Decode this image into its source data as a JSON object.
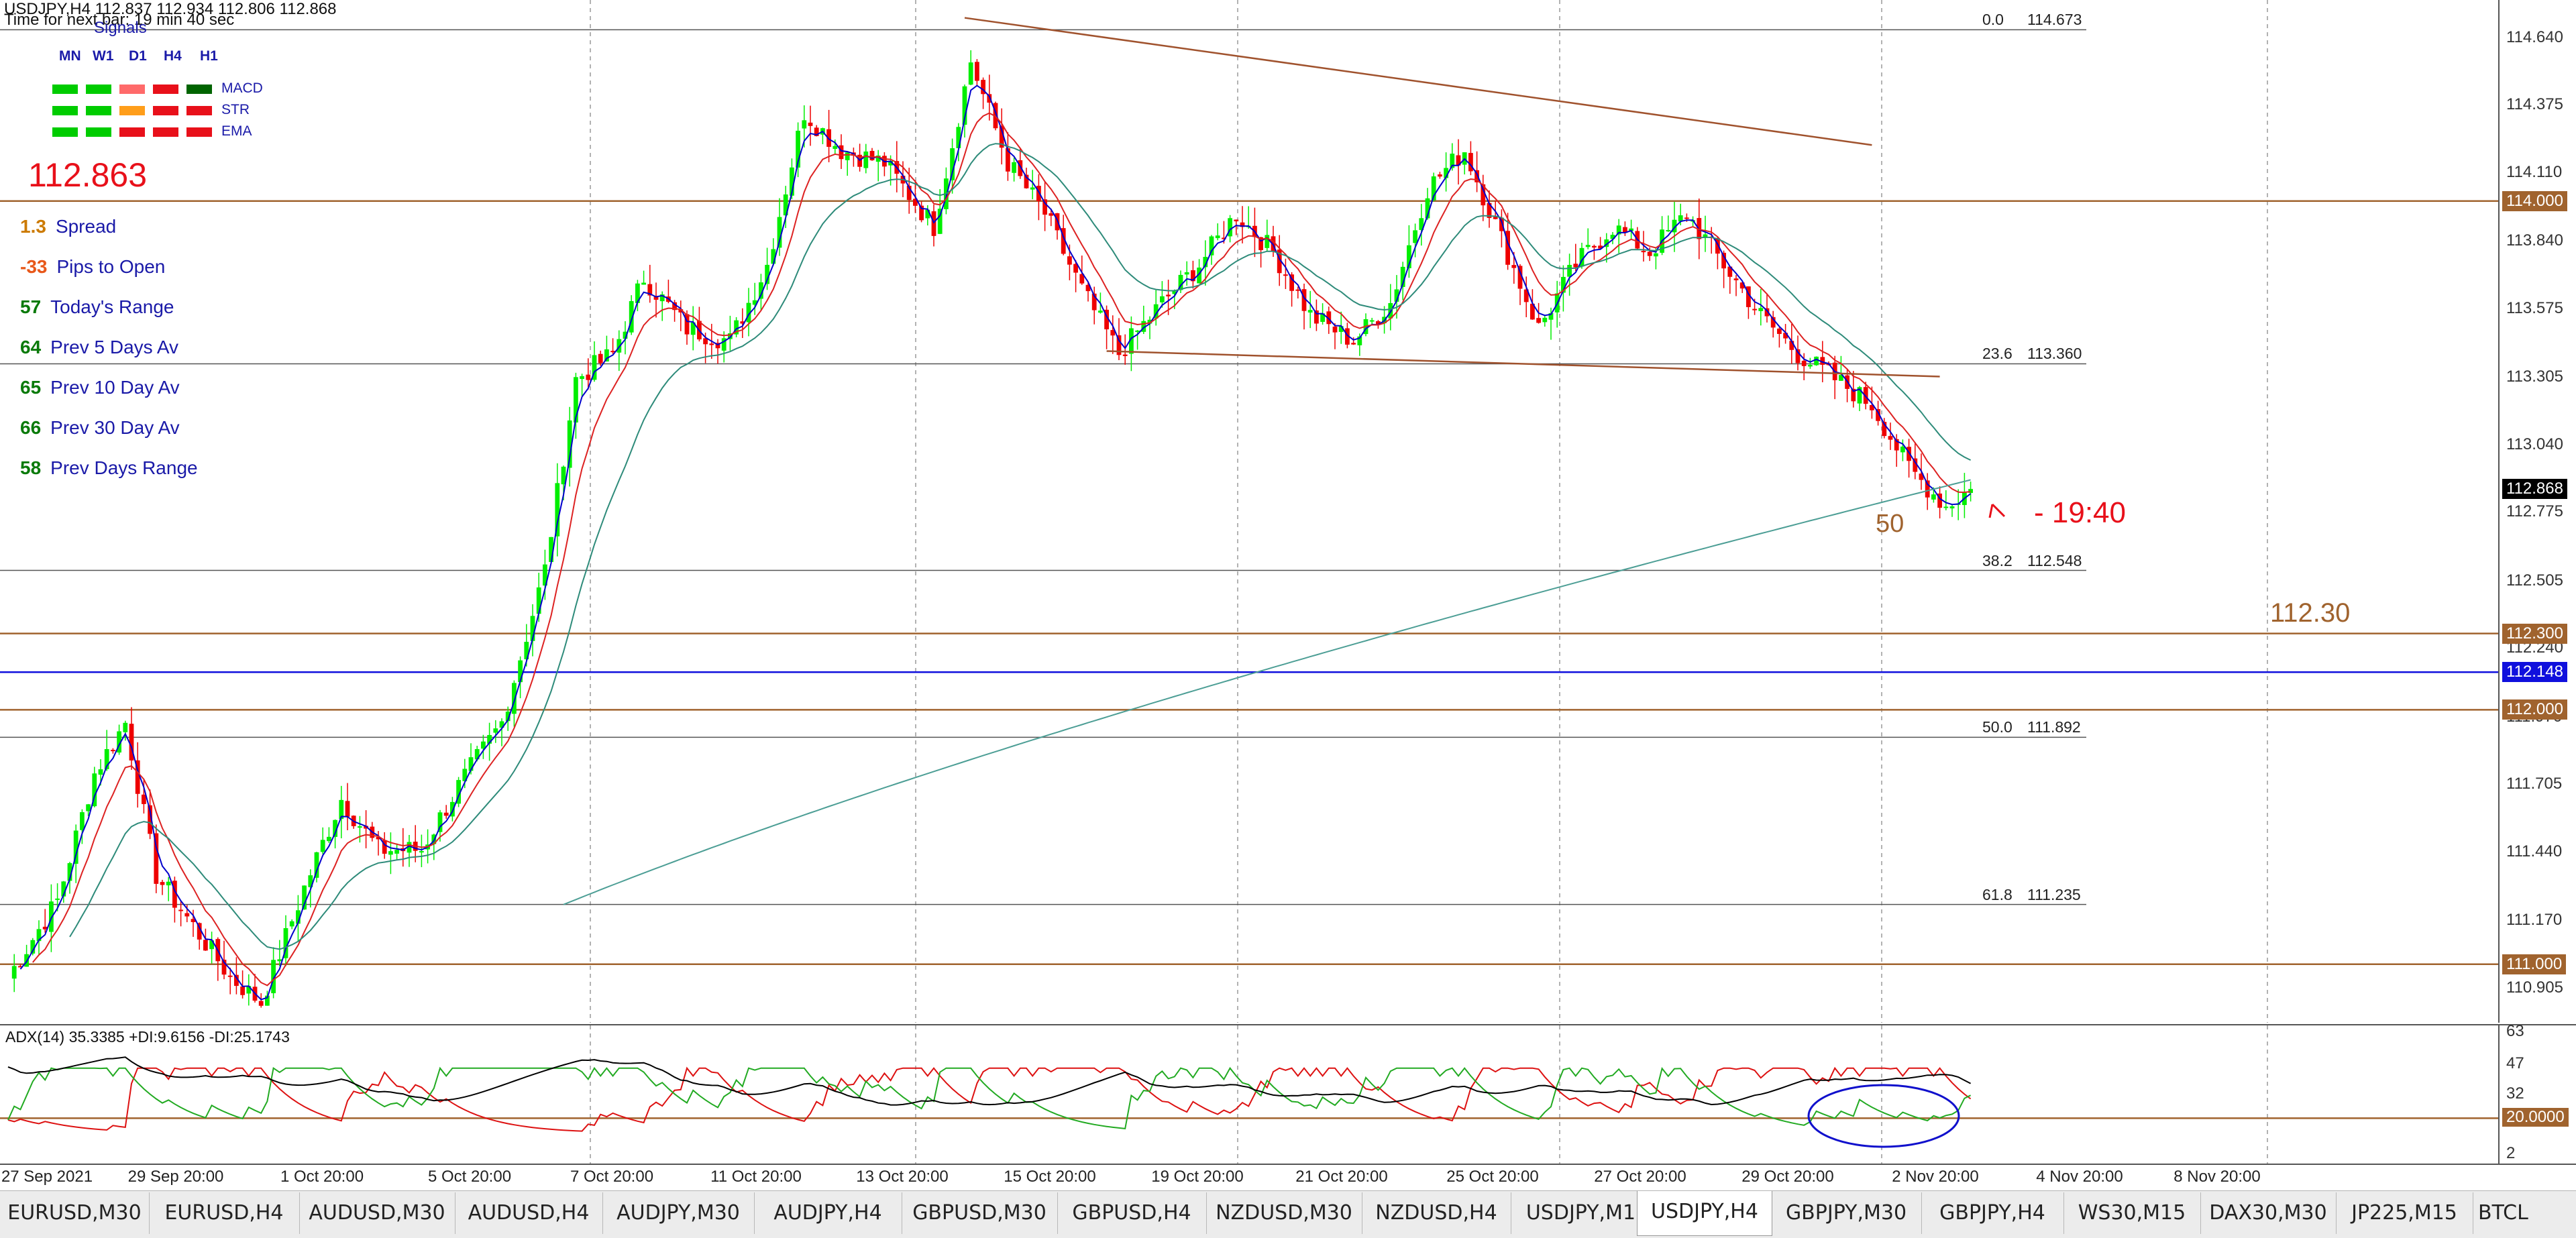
{
  "header": {
    "symbol_line": "USDJPY,H4  112.837 112.934 112.806 112.868",
    "timer": "Time for next bar: 19 min 40 sec",
    "signals_title": "Signals"
  },
  "signals": {
    "timeframes": [
      "MN",
      "W1",
      "D1",
      "H4",
      "H1"
    ],
    "rows": [
      {
        "name": "MACD",
        "colors": [
          "#00cc00",
          "#00cc00",
          "#ff6a6a",
          "#e8101a",
          "#006400"
        ]
      },
      {
        "name": "STR",
        "colors": [
          "#00cc00",
          "#00cc00",
          "#ff9e1a",
          "#e8101a",
          "#e8101a"
        ]
      },
      {
        "name": "EMA",
        "colors": [
          "#00cc00",
          "#00cc00",
          "#e8101a",
          "#e8101a",
          "#e8101a"
        ]
      }
    ]
  },
  "panel": {
    "price": "112.863",
    "stats": [
      {
        "value": "1.3",
        "label": "Spread",
        "value_color": "#cc7a00",
        "label_color": "#1a1aa8"
      },
      {
        "value": "-33",
        "label": "Pips to Open",
        "value_color": "#e8581a",
        "label_color": "#1a1aa8"
      },
      {
        "value": "57",
        "label": "Today's Range",
        "value_color": "#0a7a0a",
        "label_color": "#1a1aa8"
      },
      {
        "value": "64",
        "label": "Prev 5 Days Av",
        "value_color": "#0a7a0a",
        "label_color": "#1a1aa8"
      },
      {
        "value": "65",
        "label": "Prev 10 Day Av",
        "value_color": "#0a7a0a",
        "label_color": "#1a1aa8"
      },
      {
        "value": "66",
        "label": "Prev 30 Day Av",
        "value_color": "#0a7a0a",
        "label_color": "#1a1aa8"
      },
      {
        "value": "58",
        "label": "Prev Days Range",
        "value_color": "#0a7a0a",
        "label_color": "#1a1aa8"
      }
    ]
  },
  "annotations": {
    "countdown": "- 19:40",
    "ma_label": "50",
    "level_label": "112.30"
  },
  "colors": {
    "bull": "#00ee00",
    "bear": "#ee0000",
    "ma_fast": "#0000cc",
    "ma_mid": "#dd2222",
    "ma_slow": "#2e8b7a",
    "ma_200": "#4c9e95",
    "level_brown": "#a0632e",
    "trendline": "#a0522d",
    "fib_line": "#555555",
    "blue_line": "#1010dd",
    "adx_main": "#000000",
    "di_plus": "#22aa22",
    "di_minus": "#dd1111",
    "ellipse": "#1010cc"
  },
  "chart_data": {
    "type": "candlestick",
    "symbol": "USDJPY",
    "timeframe": "H4",
    "last_close": 112.868,
    "ylim": [
      110.77,
      114.79
    ],
    "y_ticks": [
      "114.640",
      "114.375",
      "114.110",
      "113.840",
      "113.575",
      "113.305",
      "113.040",
      "112.775",
      "112.505",
      "112.240",
      "111.970",
      "111.705",
      "111.440",
      "111.170",
      "110.905"
    ],
    "x_labels": [
      "27 Sep 2021",
      "29 Sep 20:00",
      "1 Oct 20:00",
      "5 Oct 20:00",
      "7 Oct 20:00",
      "11 Oct 20:00",
      "13 Oct 20:00",
      "15 Oct 20:00",
      "19 Oct 20:00",
      "21 Oct 20:00",
      "25 Oct 20:00",
      "27 Oct 20:00",
      "29 Oct 20:00",
      "2 Nov 20:00",
      "4 Nov 20:00",
      "8 Nov 20:00"
    ],
    "price_anchors": [
      {
        "bar": 0,
        "price": 110.95
      },
      {
        "bar": 8,
        "price": 111.25
      },
      {
        "bar": 14,
        "price": 111.75
      },
      {
        "bar": 19,
        "price": 111.95
      },
      {
        "bar": 24,
        "price": 111.35
      },
      {
        "bar": 30,
        "price": 111.15
      },
      {
        "bar": 36,
        "price": 110.95
      },
      {
        "bar": 41,
        "price": 110.85
      },
      {
        "bar": 48,
        "price": 111.3
      },
      {
        "bar": 54,
        "price": 111.65
      },
      {
        "bar": 60,
        "price": 111.45
      },
      {
        "bar": 67,
        "price": 111.45
      },
      {
        "bar": 73,
        "price": 111.7
      },
      {
        "bar": 80,
        "price": 111.95
      },
      {
        "bar": 87,
        "price": 112.55
      },
      {
        "bar": 92,
        "price": 113.3
      },
      {
        "bar": 98,
        "price": 113.4
      },
      {
        "bar": 103,
        "price": 113.7
      },
      {
        "bar": 110,
        "price": 113.5
      },
      {
        "bar": 117,
        "price": 113.45
      },
      {
        "bar": 123,
        "price": 113.75
      },
      {
        "bar": 129,
        "price": 114.35
      },
      {
        "bar": 135,
        "price": 114.2
      },
      {
        "bar": 142,
        "price": 114.15
      },
      {
        "bar": 150,
        "price": 113.9
      },
      {
        "bar": 156,
        "price": 114.55
      },
      {
        "bar": 162,
        "price": 114.15
      },
      {
        "bar": 168,
        "price": 113.95
      },
      {
        "bar": 174,
        "price": 113.65
      },
      {
        "bar": 180,
        "price": 113.4
      },
      {
        "bar": 187,
        "price": 113.6
      },
      {
        "bar": 193,
        "price": 113.75
      },
      {
        "bar": 199,
        "price": 113.95
      },
      {
        "bar": 205,
        "price": 113.8
      },
      {
        "bar": 211,
        "price": 113.55
      },
      {
        "bar": 218,
        "price": 113.45
      },
      {
        "bar": 224,
        "price": 113.6
      },
      {
        "bar": 230,
        "price": 114.05
      },
      {
        "bar": 236,
        "price": 114.2
      },
      {
        "bar": 242,
        "price": 113.85
      },
      {
        "bar": 248,
        "price": 113.5
      },
      {
        "bar": 254,
        "price": 113.75
      },
      {
        "bar": 260,
        "price": 113.9
      },
      {
        "bar": 266,
        "price": 113.8
      },
      {
        "bar": 272,
        "price": 113.95
      },
      {
        "bar": 278,
        "price": 113.75
      },
      {
        "bar": 284,
        "price": 113.55
      },
      {
        "bar": 290,
        "price": 113.4
      },
      {
        "bar": 296,
        "price": 113.3
      },
      {
        "bar": 302,
        "price": 113.2
      },
      {
        "bar": 308,
        "price": 112.95
      },
      {
        "bar": 314,
        "price": 112.8
      },
      {
        "bar": 318,
        "price": 112.868
      }
    ],
    "horizontal_levels": [
      114.0,
      112.3,
      112.148,
      112.0,
      111.0
    ],
    "level_tags": [
      "114.000",
      "112.300",
      "112.148",
      "112.000",
      "111.000",
      "112.868"
    ],
    "fibonacci": [
      {
        "level": "0.0",
        "price": "114.673"
      },
      {
        "level": "23.6",
        "price": "113.360"
      },
      {
        "level": "38.2",
        "price": "112.548"
      },
      {
        "level": "50.0",
        "price": "111.892"
      },
      {
        "level": "61.8",
        "price": "111.235"
      }
    ],
    "trendlines": [
      {
        "from": {
          "bar": 155,
          "price": 114.72
        },
        "to": {
          "bar": 302,
          "price": 114.22
        }
      },
      {
        "from": {
          "bar": 178,
          "price": 113.41
        },
        "to": {
          "bar": 313,
          "price": 113.31
        }
      }
    ],
    "indicator": {
      "name": "ADX(14) 35.3385 +DI:9.6156 -DI:25.1743",
      "ylim": [
        0,
        63
      ],
      "y_ticks": [
        "63",
        "47",
        "32",
        "20.0000",
        "2"
      ],
      "level": 20
    }
  }
}
